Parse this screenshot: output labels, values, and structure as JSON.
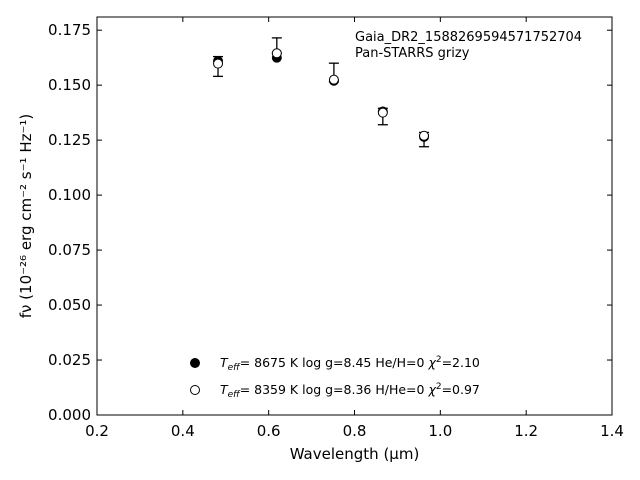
{
  "chart_data": {
    "type": "scatter",
    "annotation_lines": [
      "Gaia_DR2_1588269594571752704",
      "Pan-STARRS grizy"
    ],
    "xlabel": "Wavelength (μm)",
    "ylabel": "fν (10⁻²⁶ erg cm⁻² s⁻¹ Hz⁻¹)",
    "xlim": [
      0.2,
      1.4
    ],
    "ylim": [
      0.0,
      0.181
    ],
    "x_ticks": [
      0.2,
      0.4,
      0.6,
      0.8,
      1.0,
      1.2,
      1.4
    ],
    "x_tick_labels": [
      "0.2",
      "0.4",
      "0.6",
      "0.8",
      "1.0",
      "1.2",
      "1.4"
    ],
    "y_ticks": [
      0.0,
      0.025,
      0.05,
      0.075,
      0.1,
      0.125,
      0.15,
      0.175
    ],
    "y_tick_labels": [
      "0.000",
      "0.025",
      "0.050",
      "0.075",
      "0.100",
      "0.125",
      "0.150",
      "0.175"
    ],
    "grid": false,
    "legend_position": "bottom-center",
    "observed": {
      "x": [
        0.482,
        0.619,
        0.752,
        0.866,
        0.962
      ],
      "y": [
        0.1585,
        0.1665,
        0.1555,
        0.136,
        0.1255
      ],
      "yerr_low": [
        0.0045,
        0.002,
        0.004,
        0.004,
        0.0035
      ],
      "yerr_high": [
        0.0045,
        0.005,
        0.0045,
        0.0035,
        0.003
      ]
    },
    "series": [
      {
        "name": "Teff=  8675 K  log g=8.45  He/H=0  χ²=2.10",
        "label_parts": {
          "pre": "= 8675 K  log g=8.45  He/H=0  ",
          "chi": "=2.10"
        },
        "marker": "filled-circle",
        "x": [
          0.482,
          0.619,
          0.752,
          0.866,
          0.962
        ],
        "y": [
          0.161,
          0.1625,
          0.152,
          0.138,
          0.1265
        ]
      },
      {
        "name": "Teff=  8359 K  log g=8.36  H/He=0  χ²=0.97",
        "label_parts": {
          "pre": "= 8359 K  log g=8.36  H/He=0  ",
          "chi": "=0.97"
        },
        "marker": "open-circle",
        "x": [
          0.482,
          0.619,
          0.752,
          0.866,
          0.962
        ],
        "y": [
          0.1598,
          0.1645,
          0.1525,
          0.1375,
          0.127
        ]
      }
    ]
  }
}
